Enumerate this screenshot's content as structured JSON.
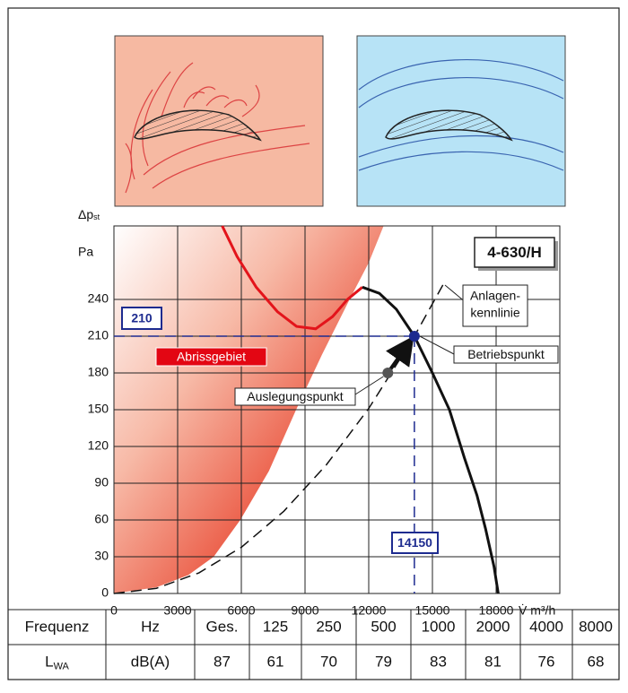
{
  "chart_data": {
    "type": "line",
    "title": "4-630/H",
    "y_label": "Δp",
    "y_label_sub": "st",
    "y_unit": "Pa",
    "x_label": "V̇ m³/h",
    "xlim": [
      0,
      21000
    ],
    "ylim": [
      0,
      300
    ],
    "xticks": [
      0,
      3000,
      6000,
      9000,
      12000,
      15000,
      18000
    ],
    "yticks": [
      0,
      30,
      60,
      90,
      120,
      150,
      180,
      210,
      240
    ],
    "grid": true,
    "stall_region": {
      "label": "Abrissgebiet",
      "color": "#e30613",
      "x": [
        0,
        2000,
        3500,
        4700,
        5950,
        7300,
        8580,
        9800,
        11100,
        12000,
        12700
      ],
      "values": [
        0,
        5,
        15,
        30,
        60,
        100,
        150,
        195,
        240,
        270,
        300
      ]
    },
    "series": [
      {
        "color": "#e3141b",
        "style": "solid",
        "x": [
          5100,
          5800,
          6700,
          7700,
          8600,
          9500,
          10300,
          11000,
          11700
        ],
        "values": [
          300,
          275,
          250,
          230,
          218,
          216,
          226,
          240,
          250
        ]
      },
      {
        "color": "#111111",
        "style": "solid",
        "x": [
          11700,
          12500,
          13300,
          14150,
          15000,
          15800,
          16500,
          17100,
          17500,
          17900,
          18100
        ],
        "values": [
          250,
          245,
          232,
          210,
          180,
          150,
          111,
          80,
          53,
          22,
          0
        ]
      },
      {
        "color": "#111111",
        "style": "dashed",
        "label": [
          "Anlagen-",
          "kennlinie"
        ],
        "x": [
          0,
          2000,
          4000,
          6000,
          8000,
          10000,
          12000,
          14150,
          15500
        ],
        "values": [
          0,
          4.2,
          16.8,
          37.7,
          67.1,
          104.9,
          151,
          210,
          252
        ]
      }
    ],
    "operating_point": {
      "label": "Betriebspunkt",
      "x": 14150,
      "y": 210,
      "color": "#1d2b8f"
    },
    "design_point": {
      "label": "Auslegungspunkt",
      "x": 12900,
      "y": 180,
      "color": "#555555"
    }
  },
  "table": {
    "rows": [
      [
        "Frequenz",
        "Hz",
        "Ges.",
        "125",
        "250",
        "500",
        "1000",
        "2000",
        "4000",
        "8000"
      ],
      [
        "L",
        "dB(A)",
        "87",
        "61",
        "70",
        "79",
        "83",
        "81",
        "76",
        "68"
      ]
    ],
    "row_1_subscript": "WA"
  }
}
